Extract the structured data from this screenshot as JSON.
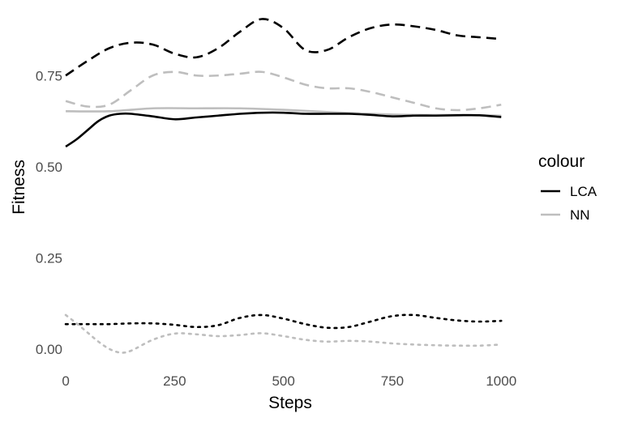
{
  "chart_data": {
    "type": "line",
    "title": "",
    "xlabel": "Steps",
    "ylabel": "Fitness",
    "xlim": [
      -15,
      1020
    ],
    "ylim": [
      -0.065,
      0.935
    ],
    "x_ticks": [
      0,
      250,
      500,
      750,
      1000
    ],
    "x_tick_labels": [
      "0",
      "250",
      "500",
      "750",
      "1000"
    ],
    "y_ticks": [
      0.0,
      0.25,
      0.5,
      0.75
    ],
    "y_tick_labels": [
      "0.00",
      "0.25",
      "0.50",
      "0.75"
    ],
    "grid": false,
    "legend": {
      "title": "colour",
      "position": "right",
      "entries": [
        {
          "label": "LCA",
          "color": "#000000"
        },
        {
          "label": "NN",
          "color": "#bebebe"
        }
      ]
    },
    "series": [
      {
        "group": "LCA",
        "linetype": "dashed",
        "color": "#000000",
        "x": [
          0,
          50,
          100,
          150,
          200,
          250,
          300,
          350,
          400,
          450,
          500,
          550,
          600,
          650,
          700,
          750,
          800,
          850,
          900,
          950,
          1000
        ],
        "y": [
          0.75,
          0.79,
          0.825,
          0.84,
          0.835,
          0.81,
          0.8,
          0.825,
          0.87,
          0.905,
          0.88,
          0.82,
          0.82,
          0.855,
          0.88,
          0.89,
          0.885,
          0.875,
          0.86,
          0.855,
          0.85
        ]
      },
      {
        "group": "NN",
        "linetype": "dashed",
        "color": "#bebebe",
        "x": [
          0,
          50,
          100,
          150,
          200,
          250,
          300,
          350,
          400,
          450,
          500,
          550,
          600,
          650,
          700,
          750,
          800,
          850,
          900,
          950,
          1000
        ],
        "y": [
          0.68,
          0.665,
          0.67,
          0.71,
          0.75,
          0.76,
          0.75,
          0.75,
          0.755,
          0.76,
          0.745,
          0.725,
          0.715,
          0.715,
          0.705,
          0.69,
          0.675,
          0.66,
          0.655,
          0.66,
          0.67
        ]
      },
      {
        "group": "NN",
        "linetype": "solid",
        "color": "#bebebe",
        "x": [
          0,
          100,
          200,
          300,
          400,
          500,
          600,
          700,
          800,
          900,
          1000
        ],
        "y": [
          0.652,
          0.652,
          0.66,
          0.66,
          0.66,
          0.656,
          0.65,
          0.645,
          0.642,
          0.642,
          0.64
        ]
      },
      {
        "group": "LCA",
        "linetype": "solid",
        "color": "#000000",
        "x": [
          0,
          25,
          50,
          75,
          100,
          125,
          150,
          200,
          250,
          300,
          350,
          400,
          450,
          500,
          550,
          600,
          650,
          700,
          750,
          800,
          850,
          900,
          950,
          1000
        ],
        "y": [
          0.555,
          0.575,
          0.6,
          0.625,
          0.64,
          0.645,
          0.645,
          0.638,
          0.63,
          0.635,
          0.64,
          0.645,
          0.648,
          0.648,
          0.645,
          0.645,
          0.645,
          0.642,
          0.638,
          0.64,
          0.64,
          0.641,
          0.641,
          0.636
        ]
      },
      {
        "group": "LCA",
        "linetype": "dotted",
        "color": "#000000",
        "x": [
          0,
          50,
          100,
          150,
          200,
          250,
          300,
          350,
          400,
          450,
          500,
          550,
          600,
          650,
          700,
          750,
          800,
          850,
          900,
          950,
          1000
        ],
        "y": [
          0.068,
          0.068,
          0.068,
          0.07,
          0.07,
          0.066,
          0.06,
          0.065,
          0.085,
          0.093,
          0.083,
          0.068,
          0.058,
          0.06,
          0.075,
          0.09,
          0.093,
          0.085,
          0.078,
          0.075,
          0.077
        ]
      },
      {
        "group": "NN",
        "linetype": "dotted",
        "color": "#bebebe",
        "x": [
          0,
          25,
          50,
          75,
          100,
          125,
          150,
          200,
          250,
          300,
          350,
          400,
          450,
          500,
          550,
          600,
          650,
          700,
          750,
          800,
          850,
          900,
          950,
          1000
        ],
        "y": [
          0.093,
          0.07,
          0.045,
          0.02,
          0.0,
          -0.01,
          -0.005,
          0.025,
          0.042,
          0.04,
          0.035,
          0.038,
          0.043,
          0.035,
          0.025,
          0.02,
          0.022,
          0.02,
          0.015,
          0.012,
          0.01,
          0.009,
          0.009,
          0.012
        ]
      }
    ]
  }
}
